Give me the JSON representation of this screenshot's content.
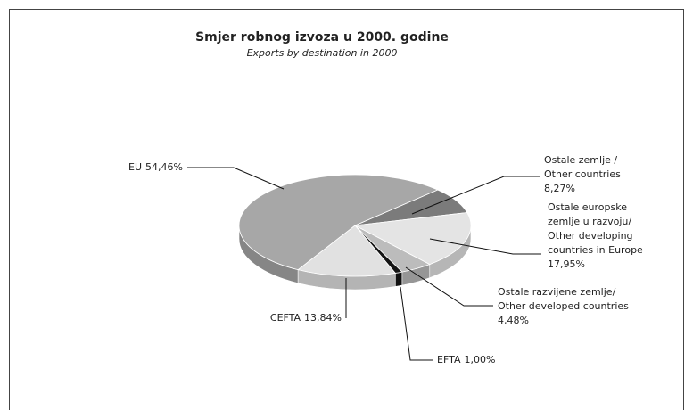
{
  "chart_data": {
    "type": "pie",
    "title": "Smjer robnog izvoza u 2000. godine",
    "subtitle": "Exports by destination in 2000",
    "categories": [
      [
        "Ostale zemlje /",
        "Other countries"
      ],
      [
        "Ostale europske",
        "zemlje u razvoju/",
        "Other developing",
        "countries in Europe"
      ],
      [
        "Ostale razvijene zemlje/",
        "Other developed countries"
      ],
      [
        "EFTA"
      ],
      [
        "CEFTA"
      ],
      [
        "EU"
      ]
    ],
    "values": [
      8.27,
      17.95,
      4.48,
      1.0,
      13.84,
      54.46
    ],
    "value_labels": [
      "8,27%",
      "17,95%",
      "4,48%",
      "1,00%",
      "13,84%",
      "54,46%"
    ],
    "colors": [
      "#7b7b7b",
      "#e4e4e4",
      "#bcbcbc",
      "#141414",
      "#e1e1e1",
      "#a7a7a7"
    ]
  }
}
